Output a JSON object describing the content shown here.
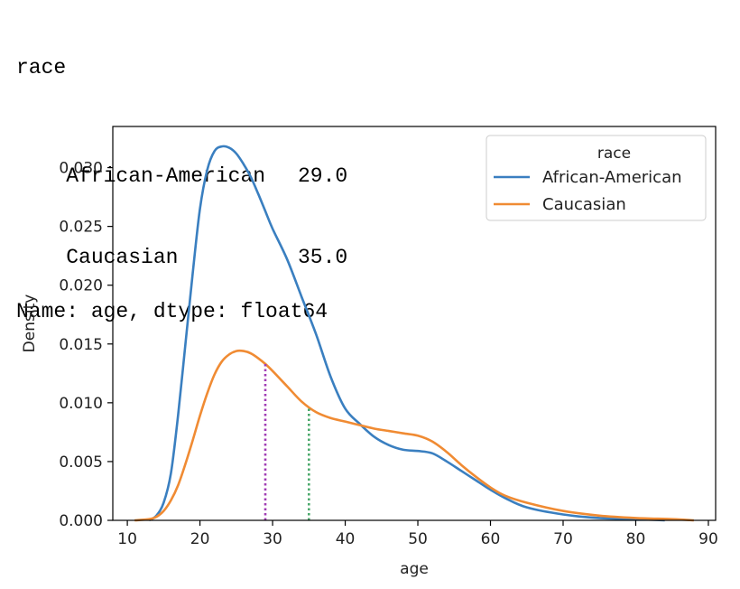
{
  "console_output": {
    "header": "race",
    "rows": [
      {
        "label": "African-American",
        "value": "29.0"
      },
      {
        "label": "Caucasian",
        "value": "35.0"
      }
    ],
    "footer": "Name: age, dtype: float64"
  },
  "chart_data": {
    "type": "line",
    "title": "",
    "xlabel": "age",
    "ylabel": "Density",
    "xlim": [
      8,
      91
    ],
    "ylim": [
      0,
      0.0335
    ],
    "xticks": [
      10,
      20,
      30,
      40,
      50,
      60,
      70,
      80,
      90
    ],
    "yticks": [
      0.0,
      0.005,
      0.01,
      0.015,
      0.02,
      0.025,
      0.03
    ],
    "ytick_labels": [
      "0.000",
      "0.005",
      "0.010",
      "0.015",
      "0.020",
      "0.025",
      "0.030"
    ],
    "grid": false,
    "legend": {
      "title": "race",
      "placement": "top-right"
    },
    "series": [
      {
        "name": "African-American",
        "color": "#3a7fc0",
        "x": [
          13,
          14,
          15,
          16,
          17,
          18,
          19,
          20,
          21,
          22,
          23,
          24,
          25,
          26,
          27,
          28,
          29,
          30,
          32,
          34,
          36,
          38,
          40,
          42,
          44,
          46,
          48,
          50,
          52,
          54,
          56,
          58,
          60,
          62,
          65,
          70,
          75,
          80,
          84
        ],
        "y": [
          0.0,
          0.0004,
          0.0015,
          0.004,
          0.009,
          0.015,
          0.021,
          0.0265,
          0.0298,
          0.0314,
          0.0318,
          0.0317,
          0.0312,
          0.0303,
          0.0292,
          0.0278,
          0.0263,
          0.0248,
          0.0222,
          0.019,
          0.0158,
          0.0122,
          0.0095,
          0.0082,
          0.0071,
          0.0064,
          0.006,
          0.0059,
          0.0057,
          0.005,
          0.0042,
          0.0034,
          0.0026,
          0.0019,
          0.0011,
          0.0005,
          0.0002,
          0.0001,
          0.0
        ]
      },
      {
        "name": "Caucasian",
        "color": "#f08b33",
        "x": [
          11,
          13,
          14,
          15,
          16,
          17,
          18,
          19,
          20,
          21,
          22,
          23,
          24,
          25,
          26,
          27,
          28,
          29,
          30,
          32,
          34,
          36,
          38,
          40,
          42,
          44,
          46,
          48,
          50,
          52,
          54,
          56,
          58,
          60,
          62,
          65,
          70,
          75,
          80,
          85,
          88
        ],
        "y": [
          0.0,
          0.0001,
          0.0003,
          0.0008,
          0.0017,
          0.003,
          0.0048,
          0.0068,
          0.0089,
          0.0108,
          0.0124,
          0.0135,
          0.0141,
          0.0144,
          0.0144,
          0.0142,
          0.0138,
          0.0133,
          0.0127,
          0.0114,
          0.0101,
          0.0092,
          0.0087,
          0.0084,
          0.0081,
          0.0078,
          0.0076,
          0.0074,
          0.0072,
          0.0067,
          0.0058,
          0.0047,
          0.0037,
          0.0028,
          0.0021,
          0.0015,
          0.0008,
          0.0004,
          0.0002,
          0.0001,
          0.0
        ]
      }
    ],
    "annotations": [
      {
        "type": "vline",
        "x": 29.0,
        "y_top": 0.0133,
        "color": "#a03cb4",
        "style": "dotted"
      },
      {
        "type": "vline",
        "x": 35.0,
        "y_top": 0.0095,
        "color": "#4aa86a",
        "style": "dotted"
      }
    ]
  }
}
